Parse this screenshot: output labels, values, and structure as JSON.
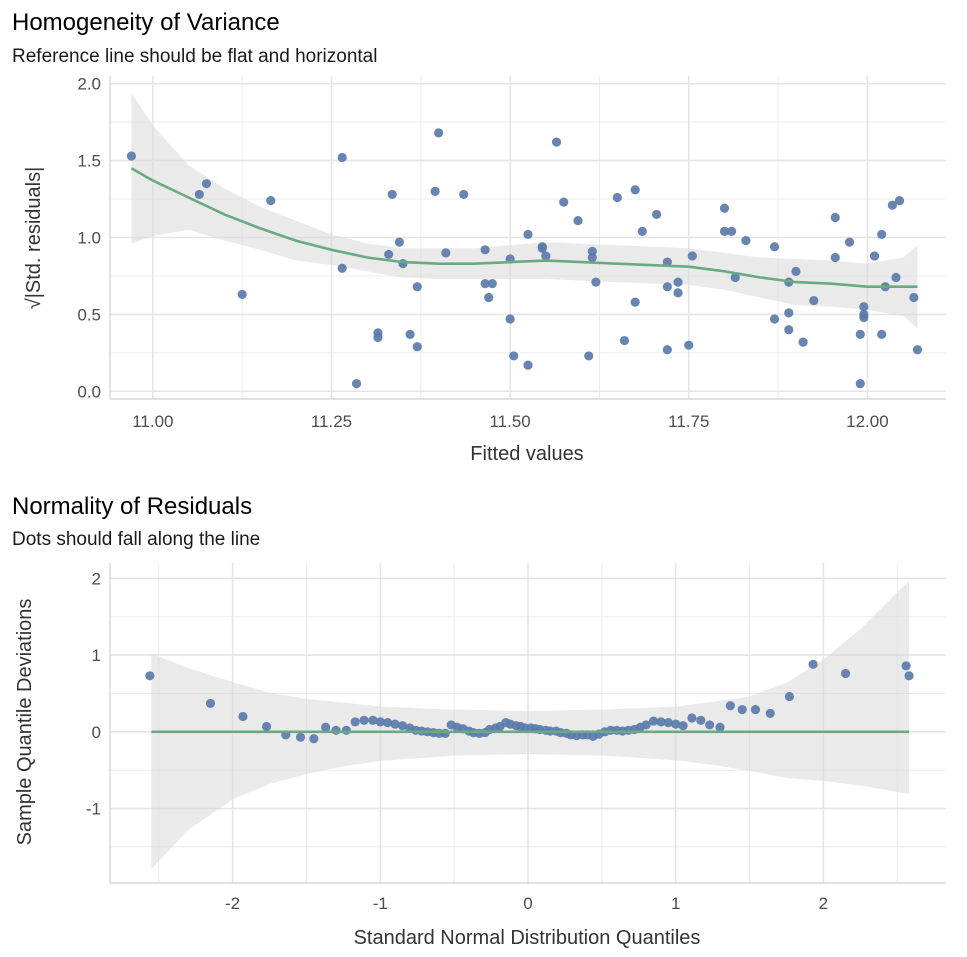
{
  "colors": {
    "point": "#5b7bab",
    "line": "#6aaa82",
    "band": "#d9d9d9",
    "grid_major": "#e5e5e5",
    "grid_minor": "#ececec",
    "axis": "#cfcfcf"
  },
  "chart_data": [
    {
      "type": "scatter",
      "title": "Homogeneity of Variance",
      "subtitle": "Reference line should be flat and horizontal",
      "xlabel": "Fitted values",
      "ylabel": "√|Std. residuals|",
      "xlim": [
        10.94,
        12.11
      ],
      "ylim": [
        -0.05,
        2.05
      ],
      "xticks": [
        11.0,
        11.25,
        11.5,
        11.75,
        12.0
      ],
      "xtick_labels": [
        "11.00",
        "11.25",
        "11.50",
        "11.75",
        "12.00"
      ],
      "yticks": [
        0.0,
        0.5,
        1.0,
        1.5,
        2.0
      ],
      "ytick_labels": [
        "0.0",
        "0.5",
        "1.0",
        "1.5",
        "2.0"
      ],
      "grid": true,
      "points": [
        [
          10.97,
          1.53
        ],
        [
          11.065,
          1.28
        ],
        [
          11.075,
          1.35
        ],
        [
          11.125,
          0.63
        ],
        [
          11.165,
          1.24
        ],
        [
          11.265,
          1.52
        ],
        [
          11.265,
          0.8
        ],
        [
          11.285,
          0.05
        ],
        [
          11.315,
          0.38
        ],
        [
          11.315,
          0.35
        ],
        [
          11.33,
          0.89
        ],
        [
          11.335,
          1.28
        ],
        [
          11.345,
          0.97
        ],
        [
          11.35,
          0.83
        ],
        [
          11.36,
          0.37
        ],
        [
          11.37,
          0.29
        ],
        [
          11.37,
          0.68
        ],
        [
          11.395,
          1.3
        ],
        [
          11.4,
          1.68
        ],
        [
          11.41,
          0.9
        ],
        [
          11.435,
          1.28
        ],
        [
          11.465,
          0.92
        ],
        [
          11.465,
          0.7
        ],
        [
          11.47,
          0.61
        ],
        [
          11.475,
          0.7
        ],
        [
          11.5,
          0.47
        ],
        [
          11.5,
          0.86
        ],
        [
          11.505,
          0.23
        ],
        [
          11.525,
          1.02
        ],
        [
          11.525,
          0.17
        ],
        [
          11.545,
          0.94
        ],
        [
          11.545,
          0.93
        ],
        [
          11.55,
          0.88
        ],
        [
          11.565,
          1.62
        ],
        [
          11.575,
          1.23
        ],
        [
          11.595,
          1.11
        ],
        [
          11.61,
          0.23
        ],
        [
          11.615,
          0.91
        ],
        [
          11.615,
          0.87
        ],
        [
          11.62,
          0.71
        ],
        [
          11.65,
          1.26
        ],
        [
          11.66,
          0.33
        ],
        [
          11.675,
          0.58
        ],
        [
          11.675,
          1.31
        ],
        [
          11.685,
          1.04
        ],
        [
          11.705,
          1.15
        ],
        [
          11.72,
          0.27
        ],
        [
          11.72,
          0.68
        ],
        [
          11.72,
          0.84
        ],
        [
          11.735,
          0.71
        ],
        [
          11.735,
          0.64
        ],
        [
          11.75,
          0.3
        ],
        [
          11.755,
          0.88
        ],
        [
          11.8,
          1.19
        ],
        [
          11.8,
          1.04
        ],
        [
          11.81,
          1.04
        ],
        [
          11.815,
          0.74
        ],
        [
          11.83,
          0.98
        ],
        [
          11.87,
          0.94
        ],
        [
          11.87,
          0.47
        ],
        [
          11.89,
          0.71
        ],
        [
          11.89,
          0.51
        ],
        [
          11.89,
          0.4
        ],
        [
          11.9,
          0.78
        ],
        [
          11.91,
          0.32
        ],
        [
          11.925,
          0.59
        ],
        [
          11.955,
          1.13
        ],
        [
          11.955,
          0.87
        ],
        [
          11.975,
          0.97
        ],
        [
          11.99,
          0.05
        ],
        [
          11.99,
          0.37
        ],
        [
          11.995,
          0.55
        ],
        [
          11.995,
          0.5
        ],
        [
          11.995,
          0.48
        ],
        [
          12.01,
          0.88
        ],
        [
          12.02,
          1.02
        ],
        [
          12.02,
          0.37
        ],
        [
          12.025,
          0.68
        ],
        [
          12.035,
          1.21
        ],
        [
          12.04,
          0.74
        ],
        [
          12.045,
          1.24
        ],
        [
          12.065,
          0.61
        ],
        [
          12.07,
          0.27
        ]
      ],
      "smooth_line": [
        [
          10.97,
          1.45
        ],
        [
          11.0,
          1.37
        ],
        [
          11.05,
          1.26
        ],
        [
          11.1,
          1.15
        ],
        [
          11.15,
          1.06
        ],
        [
          11.2,
          0.98
        ],
        [
          11.25,
          0.92
        ],
        [
          11.3,
          0.87
        ],
        [
          11.35,
          0.84
        ],
        [
          11.4,
          0.83
        ],
        [
          11.45,
          0.83
        ],
        [
          11.5,
          0.84
        ],
        [
          11.55,
          0.85
        ],
        [
          11.6,
          0.84
        ],
        [
          11.65,
          0.83
        ],
        [
          11.7,
          0.82
        ],
        [
          11.75,
          0.81
        ],
        [
          11.8,
          0.78
        ],
        [
          11.85,
          0.74
        ],
        [
          11.9,
          0.71
        ],
        [
          11.95,
          0.7
        ],
        [
          12.0,
          0.68
        ],
        [
          12.05,
          0.68
        ],
        [
          12.07,
          0.68
        ]
      ],
      "band_upper": [
        [
          10.97,
          1.94
        ],
        [
          11.0,
          1.73
        ],
        [
          11.05,
          1.47
        ],
        [
          11.1,
          1.32
        ],
        [
          11.15,
          1.2
        ],
        [
          11.2,
          1.11
        ],
        [
          11.25,
          1.02
        ],
        [
          11.3,
          0.96
        ],
        [
          11.35,
          0.93
        ],
        [
          11.4,
          0.93
        ],
        [
          11.45,
          0.93
        ],
        [
          11.5,
          0.95
        ],
        [
          11.55,
          0.97
        ],
        [
          11.6,
          0.96
        ],
        [
          11.65,
          0.95
        ],
        [
          11.7,
          0.94
        ],
        [
          11.75,
          0.93
        ],
        [
          11.8,
          0.9
        ],
        [
          11.85,
          0.87
        ],
        [
          11.9,
          0.86
        ],
        [
          11.95,
          0.85
        ],
        [
          12.0,
          0.83
        ],
        [
          12.05,
          0.87
        ],
        [
          12.07,
          0.95
        ]
      ],
      "band_lower": [
        [
          10.97,
          0.96
        ],
        [
          11.0,
          1.01
        ],
        [
          11.05,
          1.05
        ],
        [
          11.1,
          0.98
        ],
        [
          11.15,
          0.92
        ],
        [
          11.2,
          0.85
        ],
        [
          11.25,
          0.82
        ],
        [
          11.3,
          0.78
        ],
        [
          11.35,
          0.74
        ],
        [
          11.4,
          0.73
        ],
        [
          11.45,
          0.73
        ],
        [
          11.5,
          0.73
        ],
        [
          11.55,
          0.73
        ],
        [
          11.6,
          0.72
        ],
        [
          11.65,
          0.71
        ],
        [
          11.7,
          0.7
        ],
        [
          11.75,
          0.69
        ],
        [
          11.8,
          0.66
        ],
        [
          11.85,
          0.61
        ],
        [
          11.9,
          0.56
        ],
        [
          11.95,
          0.55
        ],
        [
          12.0,
          0.53
        ],
        [
          12.05,
          0.49
        ],
        [
          12.07,
          0.41
        ]
      ]
    },
    {
      "type": "scatter",
      "title": "Normality of Residuals",
      "subtitle": "Dots should fall along the line",
      "xlabel": "Standard Normal Distribution Quantiles",
      "ylabel": "Sample Quantile Deviations",
      "xlim": [
        -2.83,
        2.83
      ],
      "ylim": [
        -1.97,
        2.2
      ],
      "xticks": [
        -2,
        -1,
        0,
        1,
        2
      ],
      "xtick_labels": [
        "-2",
        "-1",
        "0",
        "1",
        "2"
      ],
      "yticks": [
        -1,
        0,
        1,
        2
      ],
      "ytick_labels": [
        "-1",
        "0",
        "1",
        "2"
      ],
      "grid": true,
      "reference_line": [
        [
          -2.55,
          0
        ],
        [
          2.58,
          0
        ]
      ],
      "points": [
        [
          -2.56,
          0.73
        ],
        [
          -2.15,
          0.37
        ],
        [
          -1.93,
          0.2
        ],
        [
          -1.77,
          0.07
        ],
        [
          -1.64,
          -0.04
        ],
        [
          -1.54,
          -0.07
        ],
        [
          -1.45,
          -0.09
        ],
        [
          -1.37,
          0.06
        ],
        [
          -1.3,
          0.02
        ],
        [
          -1.23,
          0.02
        ],
        [
          -1.17,
          0.13
        ],
        [
          -1.11,
          0.15
        ],
        [
          -1.05,
          0.15
        ],
        [
          -1.0,
          0.13
        ],
        [
          -0.95,
          0.12
        ],
        [
          -0.9,
          0.1
        ],
        [
          -0.85,
          0.08
        ],
        [
          -0.8,
          0.05
        ],
        [
          -0.76,
          0.02
        ],
        [
          -0.72,
          0.01
        ],
        [
          -0.68,
          0.0
        ],
        [
          -0.64,
          -0.01
        ],
        [
          -0.6,
          -0.02
        ],
        [
          -0.56,
          -0.02
        ],
        [
          -0.52,
          0.09
        ],
        [
          -0.48,
          0.06
        ],
        [
          -0.44,
          0.04
        ],
        [
          -0.4,
          0.01
        ],
        [
          -0.37,
          -0.01
        ],
        [
          -0.33,
          -0.02
        ],
        [
          -0.29,
          -0.01
        ],
        [
          -0.26,
          0.03
        ],
        [
          -0.22,
          0.05
        ],
        [
          -0.19,
          0.07
        ],
        [
          -0.15,
          0.12
        ],
        [
          -0.12,
          0.1
        ],
        [
          -0.08,
          0.08
        ],
        [
          -0.05,
          0.07
        ],
        [
          -0.02,
          0.05
        ],
        [
          0.02,
          0.05
        ],
        [
          0.05,
          0.04
        ],
        [
          0.08,
          0.03
        ],
        [
          0.12,
          0.02
        ],
        [
          0.15,
          0.01
        ],
        [
          0.19,
          0.01
        ],
        [
          0.22,
          -0.01
        ],
        [
          0.26,
          -0.02
        ],
        [
          0.29,
          -0.04
        ],
        [
          0.33,
          -0.05
        ],
        [
          0.37,
          -0.04
        ],
        [
          0.4,
          -0.04
        ],
        [
          0.44,
          -0.06
        ],
        [
          0.48,
          -0.03
        ],
        [
          0.52,
          0.0
        ],
        [
          0.56,
          0.02
        ],
        [
          0.6,
          0.02
        ],
        [
          0.64,
          0.01
        ],
        [
          0.68,
          0.02
        ],
        [
          0.72,
          0.03
        ],
        [
          0.76,
          0.06
        ],
        [
          0.8,
          0.09
        ],
        [
          0.85,
          0.14
        ],
        [
          0.9,
          0.13
        ],
        [
          0.95,
          0.12
        ],
        [
          1.0,
          0.1
        ],
        [
          1.05,
          0.08
        ],
        [
          1.11,
          0.18
        ],
        [
          1.17,
          0.15
        ],
        [
          1.23,
          0.09
        ],
        [
          1.3,
          0.06
        ],
        [
          1.37,
          0.34
        ],
        [
          1.45,
          0.29
        ],
        [
          1.54,
          0.29
        ],
        [
          1.64,
          0.24
        ],
        [
          1.77,
          0.46
        ],
        [
          1.93,
          0.88
        ],
        [
          2.15,
          0.76
        ],
        [
          2.56,
          0.86
        ],
        [
          2.58,
          0.73
        ]
      ],
      "band_upper": [
        [
          -2.55,
          1.02
        ],
        [
          -2.3,
          0.83
        ],
        [
          -2.0,
          0.65
        ],
        [
          -1.75,
          0.51
        ],
        [
          -1.5,
          0.43
        ],
        [
          -1.25,
          0.38
        ],
        [
          -1.0,
          0.33
        ],
        [
          -0.5,
          0.29
        ],
        [
          0.0,
          0.27
        ],
        [
          0.5,
          0.29
        ],
        [
          1.0,
          0.33
        ],
        [
          1.25,
          0.39
        ],
        [
          1.5,
          0.46
        ],
        [
          1.75,
          0.64
        ],
        [
          2.0,
          0.94
        ],
        [
          2.25,
          1.34
        ],
        [
          2.58,
          1.97
        ]
      ],
      "band_lower": [
        [
          -2.55,
          -1.79
        ],
        [
          -2.3,
          -1.28
        ],
        [
          -2.0,
          -0.88
        ],
        [
          -1.75,
          -0.68
        ],
        [
          -1.5,
          -0.55
        ],
        [
          -1.25,
          -0.45
        ],
        [
          -1.0,
          -0.38
        ],
        [
          -0.5,
          -0.31
        ],
        [
          0.0,
          -0.29
        ],
        [
          0.5,
          -0.31
        ],
        [
          1.0,
          -0.37
        ],
        [
          1.25,
          -0.43
        ],
        [
          1.5,
          -0.51
        ],
        [
          1.75,
          -0.6
        ],
        [
          2.0,
          -0.64
        ],
        [
          2.25,
          -0.7
        ],
        [
          2.58,
          -0.81
        ]
      ]
    }
  ]
}
